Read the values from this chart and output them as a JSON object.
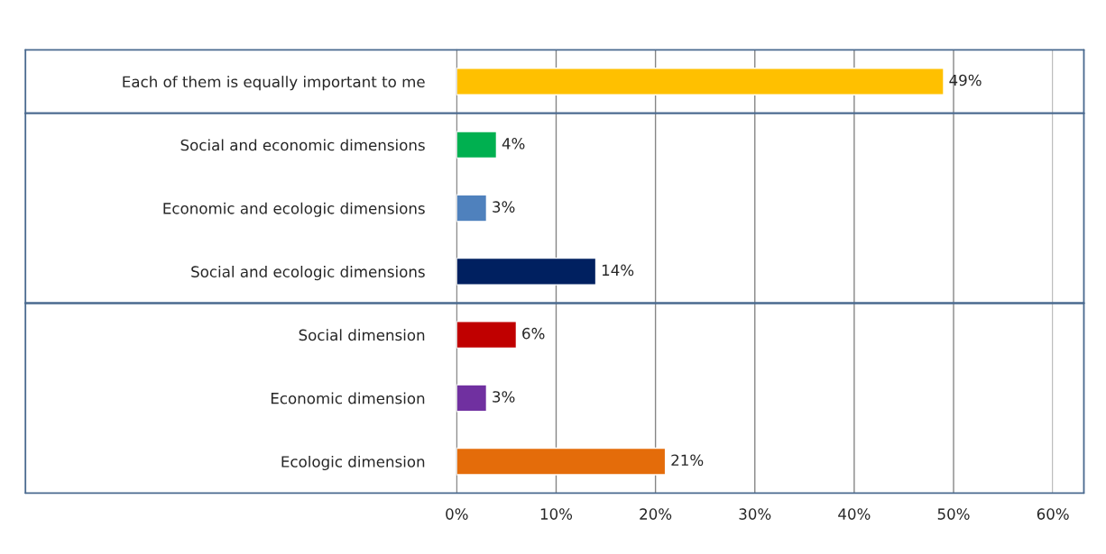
{
  "chart_data": {
    "type": "bar",
    "orientation": "horizontal",
    "categories": [
      "Each of them is equally important to me",
      "Social and economic dimensions",
      "Economic and ecologic dimensions",
      "Social and ecologic dimensions",
      "Social dimension",
      "Economic dimension",
      "Ecologic dimension"
    ],
    "values": [
      49,
      4,
      3,
      14,
      6,
      3,
      21
    ],
    "colors": [
      "#ffc000",
      "#00b050",
      "#4f81bd",
      "#002060",
      "#c00000",
      "#7030a0",
      "#e46c0a"
    ],
    "value_labels": [
      "49%",
      "4%",
      "3%",
      "14%",
      "6%",
      "3%",
      "21%"
    ],
    "xlim": [
      0,
      60
    ],
    "xticks": [
      {
        "value": 0,
        "label": "0%"
      },
      {
        "value": 10,
        "label": "10%"
      },
      {
        "value": 20,
        "label": "20%"
      },
      {
        "value": 30,
        "label": "30%"
      },
      {
        "value": 40,
        "label": "40%"
      },
      {
        "value": 50,
        "label": "50%"
      },
      {
        "value": 60,
        "label": "60%"
      }
    ],
    "grid": "x"
  }
}
